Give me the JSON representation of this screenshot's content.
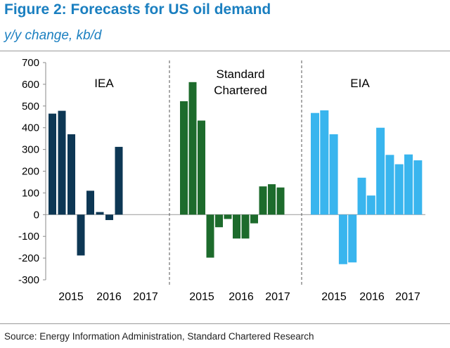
{
  "title": "Figure 2: Forecasts for US oil demand",
  "subtitle": "y/y change, kb/d",
  "source": "Source: Energy Information Administration, Standard Chartered Research",
  "chart_data": {
    "type": "bar",
    "ylim": [
      -300,
      700
    ],
    "yticks": [
      700,
      600,
      500,
      400,
      300,
      200,
      100,
      0,
      -100,
      -200,
      -300
    ],
    "grid": false,
    "panels": [
      {
        "label_lines": [
          "IEA"
        ],
        "color": "#0d3754",
        "values": [
          465,
          478,
          370,
          -188,
          110,
          12,
          -25,
          312
        ],
        "year_labels": [
          "2015",
          "2016",
          "2017"
        ]
      },
      {
        "label_lines": [
          "Standard",
          "Chartered"
        ],
        "color": "#1d6b2c",
        "values": [
          522,
          610,
          433,
          -198,
          -58,
          -20,
          -110,
          -110,
          -40,
          130,
          140,
          125
        ],
        "year_labels": [
          "2015",
          "2016",
          "2017"
        ]
      },
      {
        "label_lines": [
          "EIA"
        ],
        "color": "#39b5ee",
        "values": [
          468,
          480,
          370,
          -228,
          -220,
          170,
          88,
          400,
          275,
          232,
          277,
          250
        ],
        "year_labels": [
          "2015",
          "2016",
          "2017"
        ]
      }
    ]
  }
}
